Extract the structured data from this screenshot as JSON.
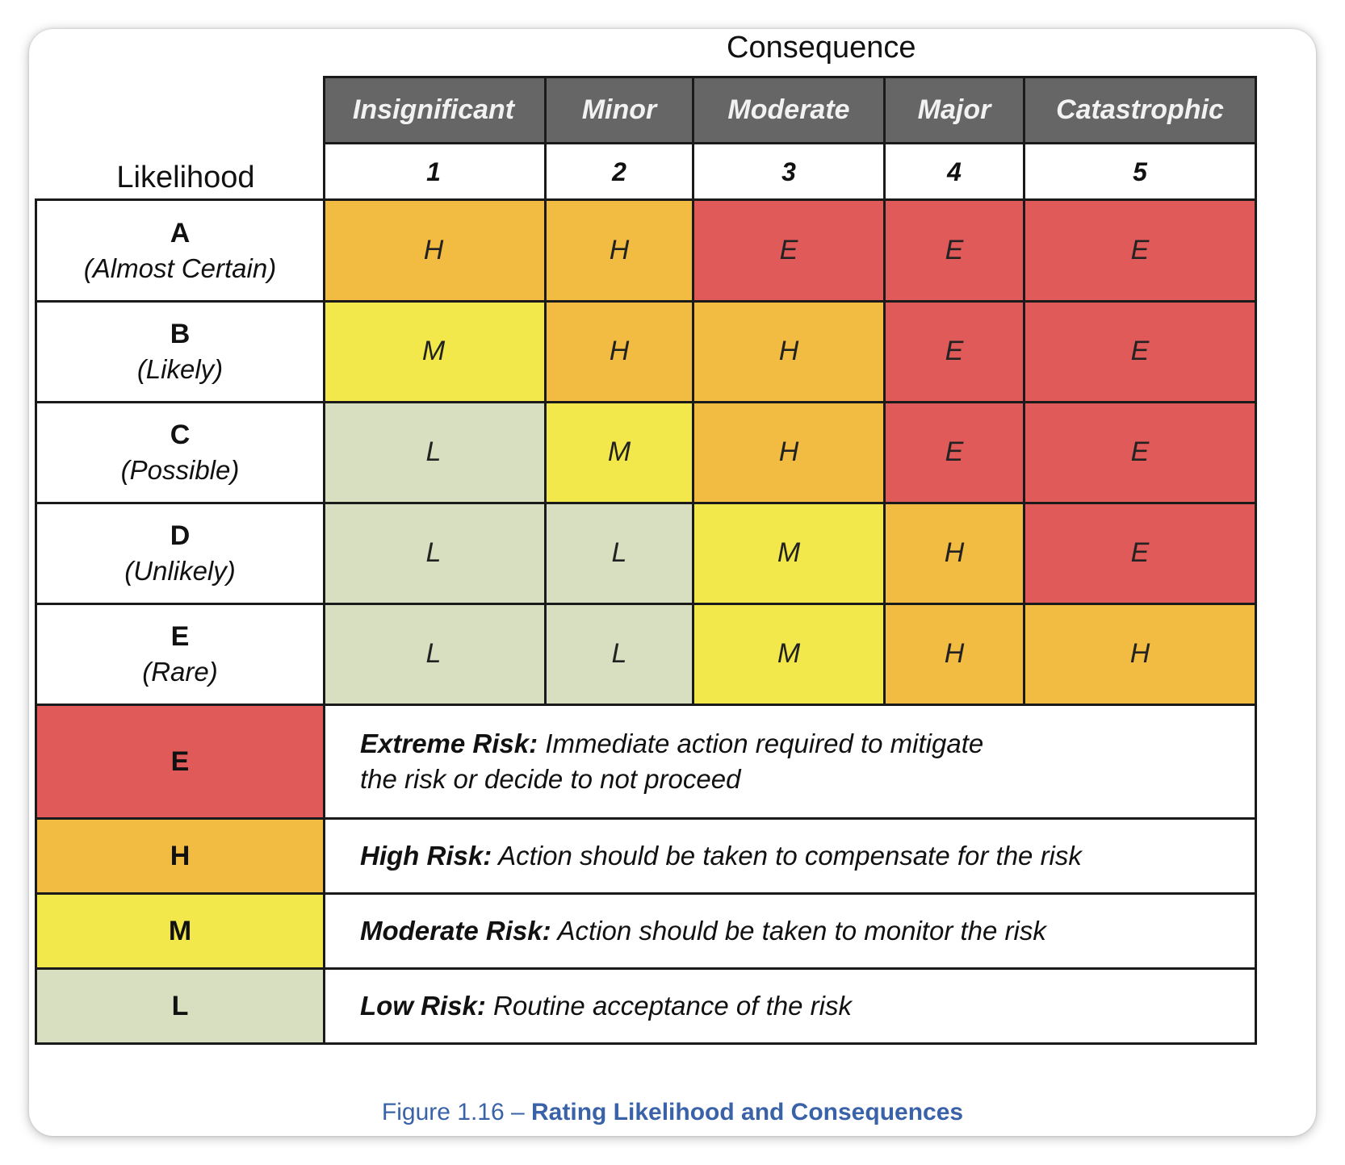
{
  "consequence_title": "Consequence",
  "likelihood_title": "Likelihood",
  "consequences": [
    {
      "name": "Insignificant",
      "number": "1"
    },
    {
      "name": "Minor",
      "number": "2"
    },
    {
      "name": "Moderate",
      "number": "3"
    },
    {
      "name": "Major",
      "number": "4"
    },
    {
      "name": "Catastrophic",
      "number": "5"
    }
  ],
  "likelihoods": [
    {
      "letter": "A",
      "desc": "(Almost Certain)",
      "ratings": [
        "H",
        "H",
        "E",
        "E",
        "E"
      ]
    },
    {
      "letter": "B",
      "desc": "(Likely)",
      "ratings": [
        "M",
        "H",
        "H",
        "E",
        "E"
      ]
    },
    {
      "letter": "C",
      "desc": "(Possible)",
      "ratings": [
        "L",
        "M",
        "H",
        "E",
        "E"
      ]
    },
    {
      "letter": "D",
      "desc": "(Unlikely)",
      "ratings": [
        "L",
        "L",
        "M",
        "H",
        "E"
      ]
    },
    {
      "letter": "E",
      "desc": "(Rare)",
      "ratings": [
        "L",
        "L",
        "M",
        "H",
        "H"
      ]
    }
  ],
  "legend": [
    {
      "code": "E",
      "label": "Extreme Risk:",
      "text_line1": "Immediate action required to  mitigate",
      "text_line2": "the risk or decide to not proceed"
    },
    {
      "code": "H",
      "label": "High Risk:",
      "text_line1": "Action should be taken to compensate  for the risk"
    },
    {
      "code": "M",
      "label": "Moderate Risk:",
      "text_line1": "Action should be taken to monitor  the risk"
    },
    {
      "code": "L",
      "label": "Low Risk:",
      "text_line1": "Routine acceptance of the risk"
    }
  ],
  "colors": {
    "E": "#e05a5a",
    "H": "#f2bb41",
    "M": "#f2e84b",
    "L": "#d8dfc0",
    "header_bg": "#666666",
    "caption": "#3a62a8"
  },
  "caption": {
    "prefix": "Figure 1.16 – ",
    "title": "Rating Likelihood and Consequences"
  }
}
